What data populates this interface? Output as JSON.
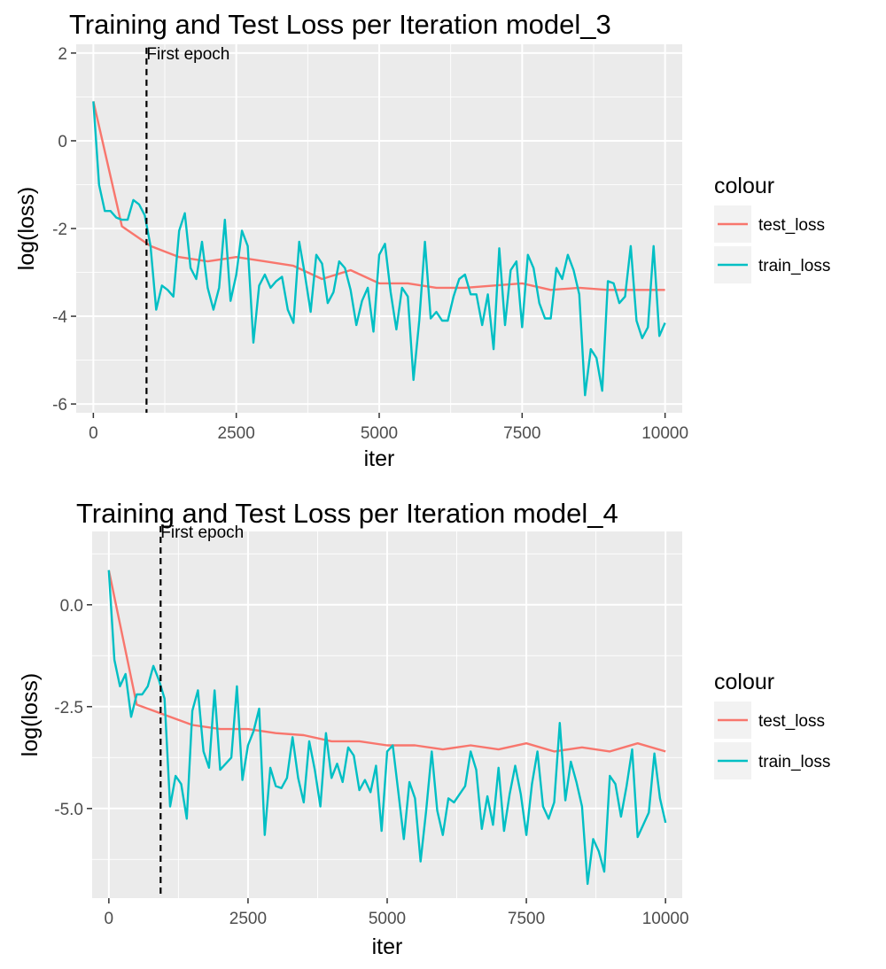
{
  "colors": {
    "test_loss": "#F8766D",
    "train_loss": "#00BFC4",
    "panel_bg": "#EBEBEB",
    "grid": "#FFFFFF",
    "tick_text": "#4D4D4D",
    "vline": "#000000"
  },
  "chart_data": [
    {
      "type": "line",
      "title": "Training and Test Loss per Iteration model_3",
      "xlabel": "iter",
      "ylabel": "log(loss)",
      "xlim": [
        -300,
        10300
      ],
      "ylim": [
        -6.2,
        2.2
      ],
      "xticks": [
        0,
        2500,
        5000,
        7500,
        10000
      ],
      "xtick_labels": [
        "0",
        "2500",
        "5000",
        "7500",
        "10000"
      ],
      "yticks": [
        -6,
        -4,
        -2,
        0,
        2
      ],
      "ytick_labels": [
        "-6",
        "-4",
        "-2",
        "0",
        "2"
      ],
      "grid": true,
      "legend": {
        "title": "colour",
        "placement": "right",
        "entries": [
          "test_loss",
          "train_loss"
        ]
      },
      "vline": {
        "x": 930,
        "label": "First epoch",
        "label_y": 2
      },
      "series": [
        {
          "name": "test_loss",
          "x": [
            0,
            500,
            1000,
            1500,
            2000,
            2500,
            3000,
            3500,
            4000,
            4500,
            5000,
            5500,
            6000,
            6500,
            7000,
            7500,
            8000,
            8500,
            9000,
            9500,
            10000
          ],
          "values": [
            0.9,
            -1.95,
            -2.4,
            -2.65,
            -2.75,
            -2.65,
            -2.75,
            -2.85,
            -3.15,
            -2.95,
            -3.25,
            -3.25,
            -3.35,
            -3.35,
            -3.3,
            -3.25,
            -3.4,
            -3.35,
            -3.4,
            -3.4,
            -3.4
          ]
        },
        {
          "name": "train_loss",
          "x": [
            0,
            100,
            200,
            300,
            400,
            500,
            600,
            700,
            800,
            900,
            1000,
            1100,
            1200,
            1300,
            1400,
            1500,
            1600,
            1700,
            1800,
            1900,
            2000,
            2100,
            2200,
            2300,
            2400,
            2500,
            2600,
            2700,
            2800,
            2900,
            3000,
            3100,
            3200,
            3300,
            3400,
            3500,
            3600,
            3700,
            3800,
            3900,
            4000,
            4100,
            4200,
            4300,
            4400,
            4500,
            4600,
            4700,
            4800,
            4900,
            5000,
            5100,
            5200,
            5300,
            5400,
            5500,
            5600,
            5700,
            5800,
            5900,
            6000,
            6100,
            6200,
            6300,
            6400,
            6500,
            6600,
            6700,
            6800,
            6900,
            7000,
            7100,
            7200,
            7300,
            7400,
            7500,
            7600,
            7700,
            7800,
            7900,
            8000,
            8100,
            8200,
            8300,
            8400,
            8500,
            8600,
            8700,
            8800,
            8900,
            9000,
            9100,
            9200,
            9300,
            9400,
            9500,
            9600,
            9700,
            9800,
            9900,
            10000
          ],
          "values": [
            0.9,
            -1.0,
            -1.6,
            -1.6,
            -1.75,
            -1.8,
            -1.8,
            -1.35,
            -1.45,
            -1.7,
            -2.4,
            -3.85,
            -3.3,
            -3.4,
            -3.55,
            -2.05,
            -1.65,
            -2.9,
            -3.15,
            -2.3,
            -3.35,
            -3.85,
            -3.35,
            -1.8,
            -3.65,
            -3.05,
            -2.05,
            -2.4,
            -4.6,
            -3.3,
            -3.05,
            -3.35,
            -3.2,
            -3.1,
            -3.85,
            -4.15,
            -2.3,
            -3.05,
            -3.9,
            -2.6,
            -2.8,
            -3.7,
            -3.45,
            -2.75,
            -2.9,
            -3.4,
            -4.2,
            -3.65,
            -3.35,
            -4.35,
            -2.6,
            -2.35,
            -3.45,
            -4.3,
            -3.35,
            -3.55,
            -5.45,
            -4.1,
            -2.3,
            -4.05,
            -3.9,
            -4.1,
            -4.1,
            -3.55,
            -3.15,
            -3.05,
            -3.5,
            -3.5,
            -4.2,
            -3.5,
            -4.75,
            -2.45,
            -4.2,
            -2.95,
            -2.75,
            -4.25,
            -2.6,
            -2.9,
            -3.7,
            -4.05,
            -4.05,
            -2.9,
            -3.15,
            -2.6,
            -2.95,
            -3.5,
            -5.8,
            -4.75,
            -4.95,
            -5.7,
            -3.2,
            -3.25,
            -3.7,
            -3.55,
            -2.4,
            -4.1,
            -4.5,
            -4.25,
            -2.4,
            -4.45,
            -4.15
          ]
        }
      ]
    },
    {
      "type": "line",
      "title": "Training and Test Loss per Iteration model_4",
      "xlabel": "iter",
      "ylabel": "log(loss)",
      "xlim": [
        -300,
        10300
      ],
      "ylim": [
        -7.2,
        1.8
      ],
      "xticks": [
        0,
        2500,
        5000,
        7500,
        10000
      ],
      "xtick_labels": [
        "0",
        "2500",
        "5000",
        "7500",
        "10000"
      ],
      "yticks": [
        -5,
        -2.5,
        0
      ],
      "ytick_labels": [
        "-5.0",
        "-2.5",
        "0.0"
      ],
      "grid": true,
      "legend": {
        "title": "colour",
        "placement": "right",
        "entries": [
          "test_loss",
          "train_loss"
        ]
      },
      "vline": {
        "x": 930,
        "label": "First epoch",
        "label_y": 1.8
      },
      "series": [
        {
          "name": "test_loss",
          "x": [
            0,
            500,
            1000,
            1500,
            2000,
            2500,
            3000,
            3500,
            4000,
            4500,
            5000,
            5500,
            6000,
            6500,
            7000,
            7500,
            8000,
            8500,
            9000,
            9500,
            10000
          ],
          "values": [
            0.85,
            -2.45,
            -2.7,
            -2.95,
            -3.05,
            -3.05,
            -3.15,
            -3.2,
            -3.35,
            -3.35,
            -3.45,
            -3.45,
            -3.55,
            -3.45,
            -3.55,
            -3.4,
            -3.6,
            -3.5,
            -3.6,
            -3.4,
            -3.6
          ]
        },
        {
          "name": "train_loss",
          "x": [
            0,
            100,
            200,
            300,
            400,
            500,
            600,
            700,
            800,
            900,
            1000,
            1100,
            1200,
            1300,
            1400,
            1500,
            1600,
            1700,
            1800,
            1900,
            2000,
            2100,
            2200,
            2300,
            2400,
            2500,
            2600,
            2700,
            2800,
            2900,
            3000,
            3100,
            3200,
            3300,
            3400,
            3500,
            3600,
            3700,
            3800,
            3900,
            4000,
            4100,
            4200,
            4300,
            4400,
            4500,
            4600,
            4700,
            4800,
            4900,
            5000,
            5100,
            5200,
            5300,
            5400,
            5500,
            5600,
            5700,
            5800,
            5900,
            6000,
            6100,
            6200,
            6300,
            6400,
            6500,
            6600,
            6700,
            6800,
            6900,
            7000,
            7100,
            7200,
            7300,
            7400,
            7500,
            7600,
            7700,
            7800,
            7900,
            8000,
            8100,
            8200,
            8300,
            8400,
            8500,
            8600,
            8700,
            8800,
            8900,
            9000,
            9100,
            9200,
            9300,
            9400,
            9500,
            9600,
            9700,
            9800,
            9900,
            10000
          ],
          "values": [
            0.85,
            -1.35,
            -2.0,
            -1.7,
            -2.75,
            -2.2,
            -2.2,
            -2.0,
            -1.5,
            -1.85,
            -2.3,
            -4.95,
            -4.2,
            -4.4,
            -5.25,
            -2.6,
            -2.1,
            -3.6,
            -4.0,
            -2.1,
            -4.05,
            -3.9,
            -3.75,
            -2.0,
            -4.3,
            -3.45,
            -3.1,
            -2.55,
            -5.65,
            -4.0,
            -4.45,
            -4.5,
            -4.25,
            -3.25,
            -4.25,
            -4.85,
            -3.35,
            -4.05,
            -4.95,
            -3.15,
            -4.25,
            -3.9,
            -4.35,
            -3.5,
            -3.7,
            -4.55,
            -4.3,
            -4.6,
            -3.95,
            -5.55,
            -3.6,
            -3.45,
            -4.6,
            -5.75,
            -4.35,
            -4.75,
            -6.3,
            -5.05,
            -3.6,
            -5.05,
            -5.65,
            -4.75,
            -4.85,
            -4.65,
            -4.45,
            -3.6,
            -4.05,
            -5.5,
            -4.7,
            -5.4,
            -4.0,
            -5.55,
            -4.65,
            -3.95,
            -4.65,
            -5.65,
            -4.4,
            -3.6,
            -4.95,
            -5.25,
            -4.85,
            -2.9,
            -4.8,
            -3.85,
            -4.35,
            -4.95,
            -6.85,
            -5.75,
            -6.05,
            -6.55,
            -4.2,
            -4.4,
            -5.2,
            -4.45,
            -3.55,
            -5.7,
            -5.4,
            -5.1,
            -3.65,
            -4.75,
            -5.35
          ]
        }
      ]
    }
  ]
}
